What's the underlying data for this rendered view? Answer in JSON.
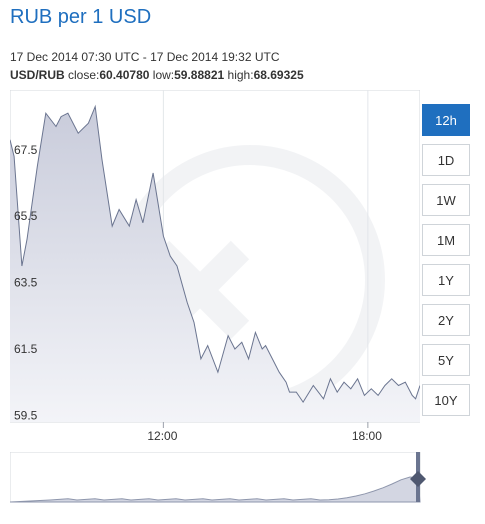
{
  "header": {
    "title": "RUB per 1 USD",
    "range_text": "17 Dec 2014 07:30 UTC - 17 Dec 2014 19:32 UTC",
    "pair": "USD/RUB",
    "close_label": "close:",
    "close_value": "60.40780",
    "low_label": "low:",
    "low_value": "59.88821",
    "high_label": "high:",
    "high_value": "68.69325"
  },
  "buttons": [
    {
      "label": "12h",
      "active": true
    },
    {
      "label": "1D",
      "active": false
    },
    {
      "label": "1W",
      "active": false
    },
    {
      "label": "1M",
      "active": false
    },
    {
      "label": "1Y",
      "active": false
    },
    {
      "label": "2Y",
      "active": false
    },
    {
      "label": "5Y",
      "active": false
    },
    {
      "label": "10Y",
      "active": false
    }
  ],
  "colors": {
    "accent": "#1f6fbf",
    "line": "#6b7590",
    "area_top": "#c9ccdb",
    "area_bottom": "#f3f4f8"
  },
  "chart_data": {
    "type": "area",
    "title": "RUB per 1 USD",
    "xlabel": "",
    "ylabel": "",
    "x_unit": "hours UTC",
    "xlim": [
      7.5,
      19.53
    ],
    "ylim": [
      59.3,
      69.3
    ],
    "y_ticks": [
      59.5,
      61.5,
      63.5,
      65.5,
      67.5
    ],
    "y_tick_labels": [
      "59.5",
      "61.5",
      "63.5",
      "65.5",
      "67.5"
    ],
    "x_ticks": [
      12,
      18
    ],
    "x_tick_labels": [
      "12:00",
      "18:00"
    ],
    "grid": true,
    "series": [
      {
        "x": [
          7.5,
          7.62,
          7.85,
          8.0,
          8.3,
          8.55,
          8.85,
          9.0,
          9.2,
          9.5,
          9.8,
          10.0,
          10.2,
          10.5,
          10.7,
          11.0,
          11.2,
          11.4,
          11.7,
          12.0,
          12.2,
          12.4,
          12.7,
          12.9,
          13.1,
          13.3,
          13.6,
          13.9,
          14.1,
          14.3,
          14.5,
          14.7,
          14.9,
          15.0,
          15.2,
          15.4,
          15.6,
          15.7,
          15.9,
          16.1,
          16.4,
          16.7,
          16.9,
          17.1,
          17.3,
          17.5,
          17.7,
          17.9,
          18.1,
          18.3,
          18.5,
          18.7,
          18.9,
          19.1,
          19.3,
          19.4,
          19.53
        ],
        "values": [
          67.8,
          67.3,
          64.0,
          64.8,
          67.0,
          68.6,
          68.2,
          68.5,
          68.6,
          68.0,
          68.3,
          68.8,
          67.2,
          65.2,
          65.7,
          65.2,
          66.0,
          65.3,
          66.8,
          64.9,
          64.3,
          64.0,
          62.9,
          62.3,
          61.2,
          61.6,
          60.8,
          61.9,
          61.5,
          61.7,
          61.2,
          62.0,
          61.5,
          61.6,
          61.2,
          60.8,
          60.5,
          60.2,
          60.2,
          59.9,
          60.4,
          60.0,
          60.6,
          60.2,
          60.5,
          60.3,
          60.6,
          60.1,
          60.3,
          60.1,
          60.4,
          60.6,
          60.4,
          60.5,
          60.1,
          60.0,
          60.4
        ]
      }
    ]
  }
}
